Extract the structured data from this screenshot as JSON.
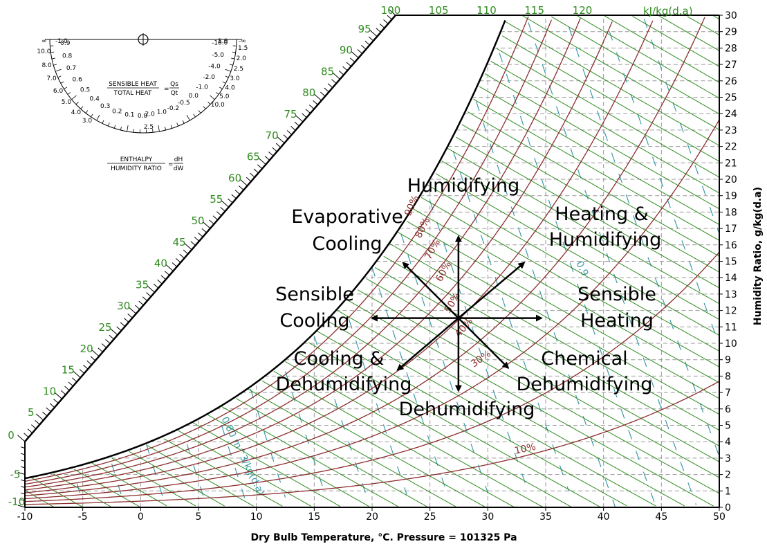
{
  "chart_data": {
    "type": "psychrometric",
    "pressure_pa": 101325,
    "x_axis": {
      "label": "Dry Bulb Temperature, °C. Pressure = 101325 Pa",
      "range": [
        -10,
        50
      ],
      "ticks": [
        -10,
        -5,
        0,
        5,
        10,
        15,
        20,
        25,
        30,
        35,
        40,
        45,
        50
      ]
    },
    "y_axis": {
      "label": "Humidity Ratio, g/kg(d.a)",
      "range": [
        0,
        30
      ],
      "ticks": [
        0,
        1,
        2,
        3,
        4,
        5,
        6,
        7,
        8,
        9,
        10,
        11,
        12,
        13,
        14,
        15,
        16,
        17,
        18,
        19,
        20,
        21,
        22,
        23,
        24,
        25,
        26,
        27,
        28,
        29,
        30
      ]
    },
    "enthalpy_scale": {
      "unit": "kJ/kg(d.a)",
      "saturation_labels": [
        -10,
        -5,
        0,
        5,
        10,
        15,
        20,
        25,
        30,
        35,
        40,
        45,
        50,
        55,
        60,
        65,
        70,
        75,
        80,
        85,
        90,
        95
      ],
      "top_labels": [
        100,
        105,
        110,
        115,
        120
      ]
    },
    "relative_humidity_lines": [
      {
        "rh": 10,
        "label": "10%"
      },
      {
        "rh": 20,
        "label": ""
      },
      {
        "rh": 30,
        "label": "30%"
      },
      {
        "rh": 40,
        "label": "40%"
      },
      {
        "rh": 50,
        "label": "50%"
      },
      {
        "rh": 60,
        "label": "60%"
      },
      {
        "rh": 70,
        "label": "70%"
      },
      {
        "rh": 80,
        "label": "80%"
      },
      {
        "rh": 90,
        "label": "90%"
      },
      {
        "rh": 100,
        "label": ""
      }
    ],
    "specific_volume_labels": [
      "0.80 m^3/kg(d.a)",
      "0.9"
    ],
    "process_origin": {
      "db": 28,
      "w": 12
    },
    "processes": [
      {
        "label": "Humidifying",
        "direction": "up"
      },
      {
        "label": "Dehumidifying",
        "direction": "down"
      },
      {
        "label": "Sensible Heating",
        "direction": "right"
      },
      {
        "label": "Sensible Cooling",
        "direction": "left"
      },
      {
        "label": "Heating & Humidifying",
        "direction": "up-right"
      },
      {
        "label": "Evaporative Cooling",
        "direction": "up-left"
      },
      {
        "label": "Cooling & Dehumidifying",
        "direction": "down-left"
      },
      {
        "label": "Chemical Dehumidifying",
        "direction": "down-right"
      }
    ],
    "protractor": {
      "top_left": "∞",
      "top_left_value": "-1.0",
      "top_right_value": "1.0",
      "top_right": "-∞",
      "left_values": [
        "0.9",
        "0.8",
        "0.7",
        "0.6",
        "0.5",
        "0.4",
        "0.3",
        "0.2",
        "0.1",
        "0.0"
      ],
      "left_outer_values": [
        "10.0",
        "8.0",
        "7.0",
        "6.0",
        "5.0",
        "4.0",
        "3.0"
      ],
      "right_values": [
        "1.5",
        "2.0",
        "2.5",
        "3.0",
        "4.0",
        "5.0",
        "10.0"
      ],
      "right_outer_values": [
        "-10.0",
        "-5.0",
        "-4.0",
        "-2.0",
        "-1.0",
        "0.0",
        "-0.5",
        "-0.2",
        "1.0",
        "2.0"
      ],
      "bottom_value": "2.5",
      "ratio1_numerator": "SENSIBLE HEAT",
      "ratio1_denominator": "TOTAL HEAT",
      "ratio1_rhs_numerator": "Qs",
      "ratio1_rhs_denominator": "Qt",
      "ratio2_numerator": "ENTHALPY",
      "ratio2_denominator": "HUMIDITY RATIO",
      "ratio2_rhs_numerator": "dH",
      "ratio2_rhs_denominator": "dW"
    },
    "colors": {
      "enthalpy": "#2e8b1e",
      "rh": "#8b2d2d",
      "volume": "#3a9aa8",
      "grid": "#9a9a9a",
      "arrows": "#000000"
    }
  }
}
